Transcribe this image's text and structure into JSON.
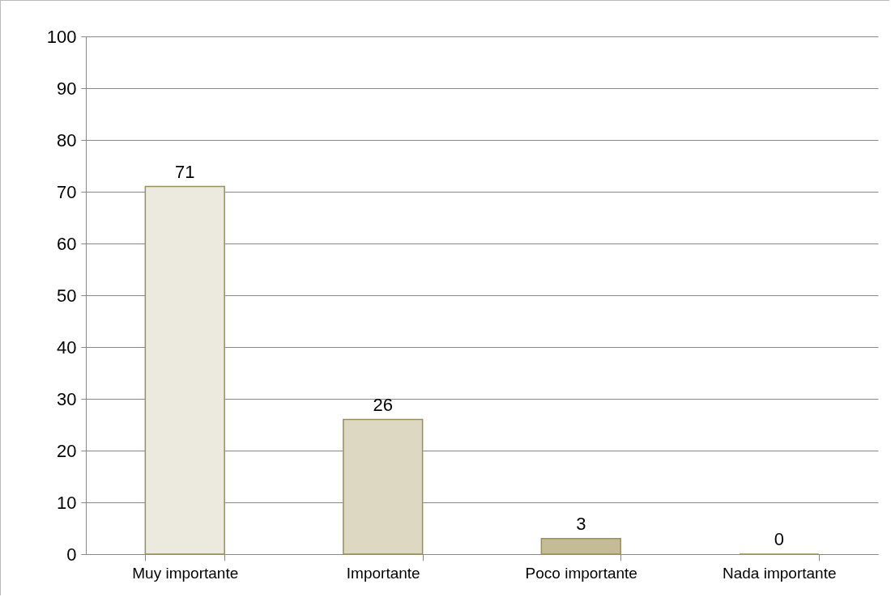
{
  "chart_data": {
    "type": "bar",
    "categories": [
      "Muy importante",
      "Importante",
      "Poco importante",
      "Nada importante"
    ],
    "values": [
      71,
      26,
      3,
      0
    ],
    "colors": [
      "#ece9df",
      "#ddd8c1",
      "#c4bc97",
      "#9a8f5a"
    ],
    "ylim": [
      0,
      100
    ],
    "yticks": [
      0,
      10,
      20,
      30,
      40,
      50,
      60,
      70,
      80,
      90,
      100
    ],
    "grid": "y",
    "data_labels": true
  }
}
